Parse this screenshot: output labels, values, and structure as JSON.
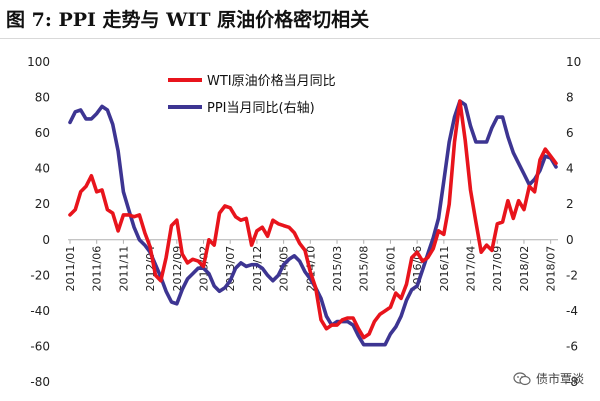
{
  "title": "图 7:  PPI 走势与 WIT 原油价格密切相关",
  "watermark": "债市覃谈",
  "colors": {
    "wti": "#e8141c",
    "ppi": "#3d3592"
  },
  "chart_data": {
    "type": "line",
    "x": [
      "2011/01",
      "2011/02",
      "2011/03",
      "2011/04",
      "2011/05",
      "2011/06",
      "2011/07",
      "2011/08",
      "2011/09",
      "2011/10",
      "2011/11",
      "2011/12",
      "2012/01",
      "2012/02",
      "2012/03",
      "2012/04",
      "2012/05",
      "2012/06",
      "2012/07",
      "2012/08",
      "2012/09",
      "2012/10",
      "2012/11",
      "2012/12",
      "2013/01",
      "2013/02",
      "2013/03",
      "2013/04",
      "2013/05",
      "2013/06",
      "2013/07",
      "2013/08",
      "2013/09",
      "2013/10",
      "2013/11",
      "2013/12",
      "2014/01",
      "2014/02",
      "2014/03",
      "2014/04",
      "2014/05",
      "2014/06",
      "2014/07",
      "2014/08",
      "2014/09",
      "2014/10",
      "2014/11",
      "2014/12",
      "2015/01",
      "2015/02",
      "2015/03",
      "2015/04",
      "2015/05",
      "2015/06",
      "2015/07",
      "2015/08",
      "2015/09",
      "2015/10",
      "2015/11",
      "2015/12",
      "2016/01",
      "2016/02",
      "2016/03",
      "2016/04",
      "2016/05",
      "2016/06",
      "2016/07",
      "2016/08",
      "2016/09",
      "2016/10",
      "2016/11",
      "2016/12",
      "2017/01",
      "2017/02",
      "2017/03",
      "2017/04",
      "2017/05",
      "2017/06",
      "2017/07",
      "2017/08",
      "2017/09",
      "2017/10",
      "2017/11",
      "2017/12",
      "2018/01",
      "2018/02",
      "2018/03",
      "2018/04",
      "2018/05",
      "2018/06",
      "2018/07",
      "2018/08"
    ],
    "tick_labels": [
      "2011/01",
      "2011/06",
      "2011/11",
      "2012/04",
      "2012/09",
      "2013/02",
      "2013/07",
      "2013/12",
      "2014/05",
      "2014/10",
      "2015/03",
      "2015/08",
      "2016/01",
      "2016/06",
      "2016/11",
      "2017/04",
      "2017/09",
      "2018/02",
      "2018/07"
    ],
    "left_axis": {
      "ylim": [
        -80,
        100
      ],
      "ticks": [
        100,
        80,
        60,
        40,
        20,
        0,
        -20,
        -40,
        -60,
        -80
      ]
    },
    "right_axis": {
      "ylim": [
        -8,
        10
      ],
      "ticks": [
        10,
        8,
        6,
        4,
        2,
        0,
        -2,
        -4,
        -6,
        -8
      ]
    },
    "grid": false,
    "legend_position": "top-center",
    "series": [
      {
        "name": "WTI原油价格当月同比",
        "axis": "left",
        "values": [
          14,
          17,
          27,
          30,
          36,
          27,
          28,
          17,
          15,
          5,
          14,
          14,
          13,
          14,
          4,
          -4,
          -20,
          -23,
          -10,
          8,
          11,
          -8,
          -13,
          -11,
          -12,
          -15,
          0,
          -3,
          15,
          19,
          18,
          13,
          11,
          12,
          -3,
          5,
          7,
          2,
          11,
          9,
          8,
          7,
          4,
          -2,
          -6,
          -18,
          -27,
          -45,
          -50,
          -48,
          -48,
          -45,
          -44,
          -44,
          -50,
          -55,
          -53,
          -46,
          -42,
          -40,
          -38,
          -30,
          -33,
          -25,
          -10,
          -7,
          -12,
          -10,
          -5,
          5,
          3,
          20,
          55,
          78,
          56,
          28,
          10,
          -7,
          -3,
          -6,
          9,
          10,
          22,
          12,
          22,
          17,
          30,
          27,
          45,
          51,
          47,
          43
        ]
      },
      {
        "name": "PPI当月同比(右轴)",
        "axis": "right",
        "values": [
          6.6,
          7.2,
          7.3,
          6.8,
          6.8,
          7.1,
          7.5,
          7.3,
          6.5,
          5.0,
          2.7,
          1.7,
          0.7,
          0.0,
          -0.3,
          -0.7,
          -1.4,
          -2.1,
          -2.9,
          -3.5,
          -3.6,
          -2.8,
          -2.2,
          -1.9,
          -1.6,
          -1.6,
          -1.9,
          -2.6,
          -2.9,
          -2.7,
          -2.3,
          -1.6,
          -1.3,
          -1.5,
          -1.4,
          -1.4,
          -1.6,
          -2.0,
          -2.3,
          -2.0,
          -1.4,
          -1.1,
          -0.9,
          -1.2,
          -1.8,
          -2.2,
          -2.7,
          -3.3,
          -4.3,
          -4.8,
          -4.6,
          -4.6,
          -4.6,
          -4.8,
          -5.4,
          -5.9,
          -5.9,
          -5.9,
          -5.9,
          -5.9,
          -5.3,
          -4.9,
          -4.3,
          -3.4,
          -2.8,
          -2.6,
          -1.7,
          -0.8,
          0.1,
          1.2,
          3.3,
          5.5,
          6.9,
          7.8,
          7.6,
          6.4,
          5.5,
          5.5,
          5.5,
          6.3,
          6.9,
          6.9,
          5.8,
          4.9,
          4.3,
          3.7,
          3.1,
          3.4,
          3.9,
          4.7,
          4.6,
          4.1
        ]
      }
    ]
  }
}
